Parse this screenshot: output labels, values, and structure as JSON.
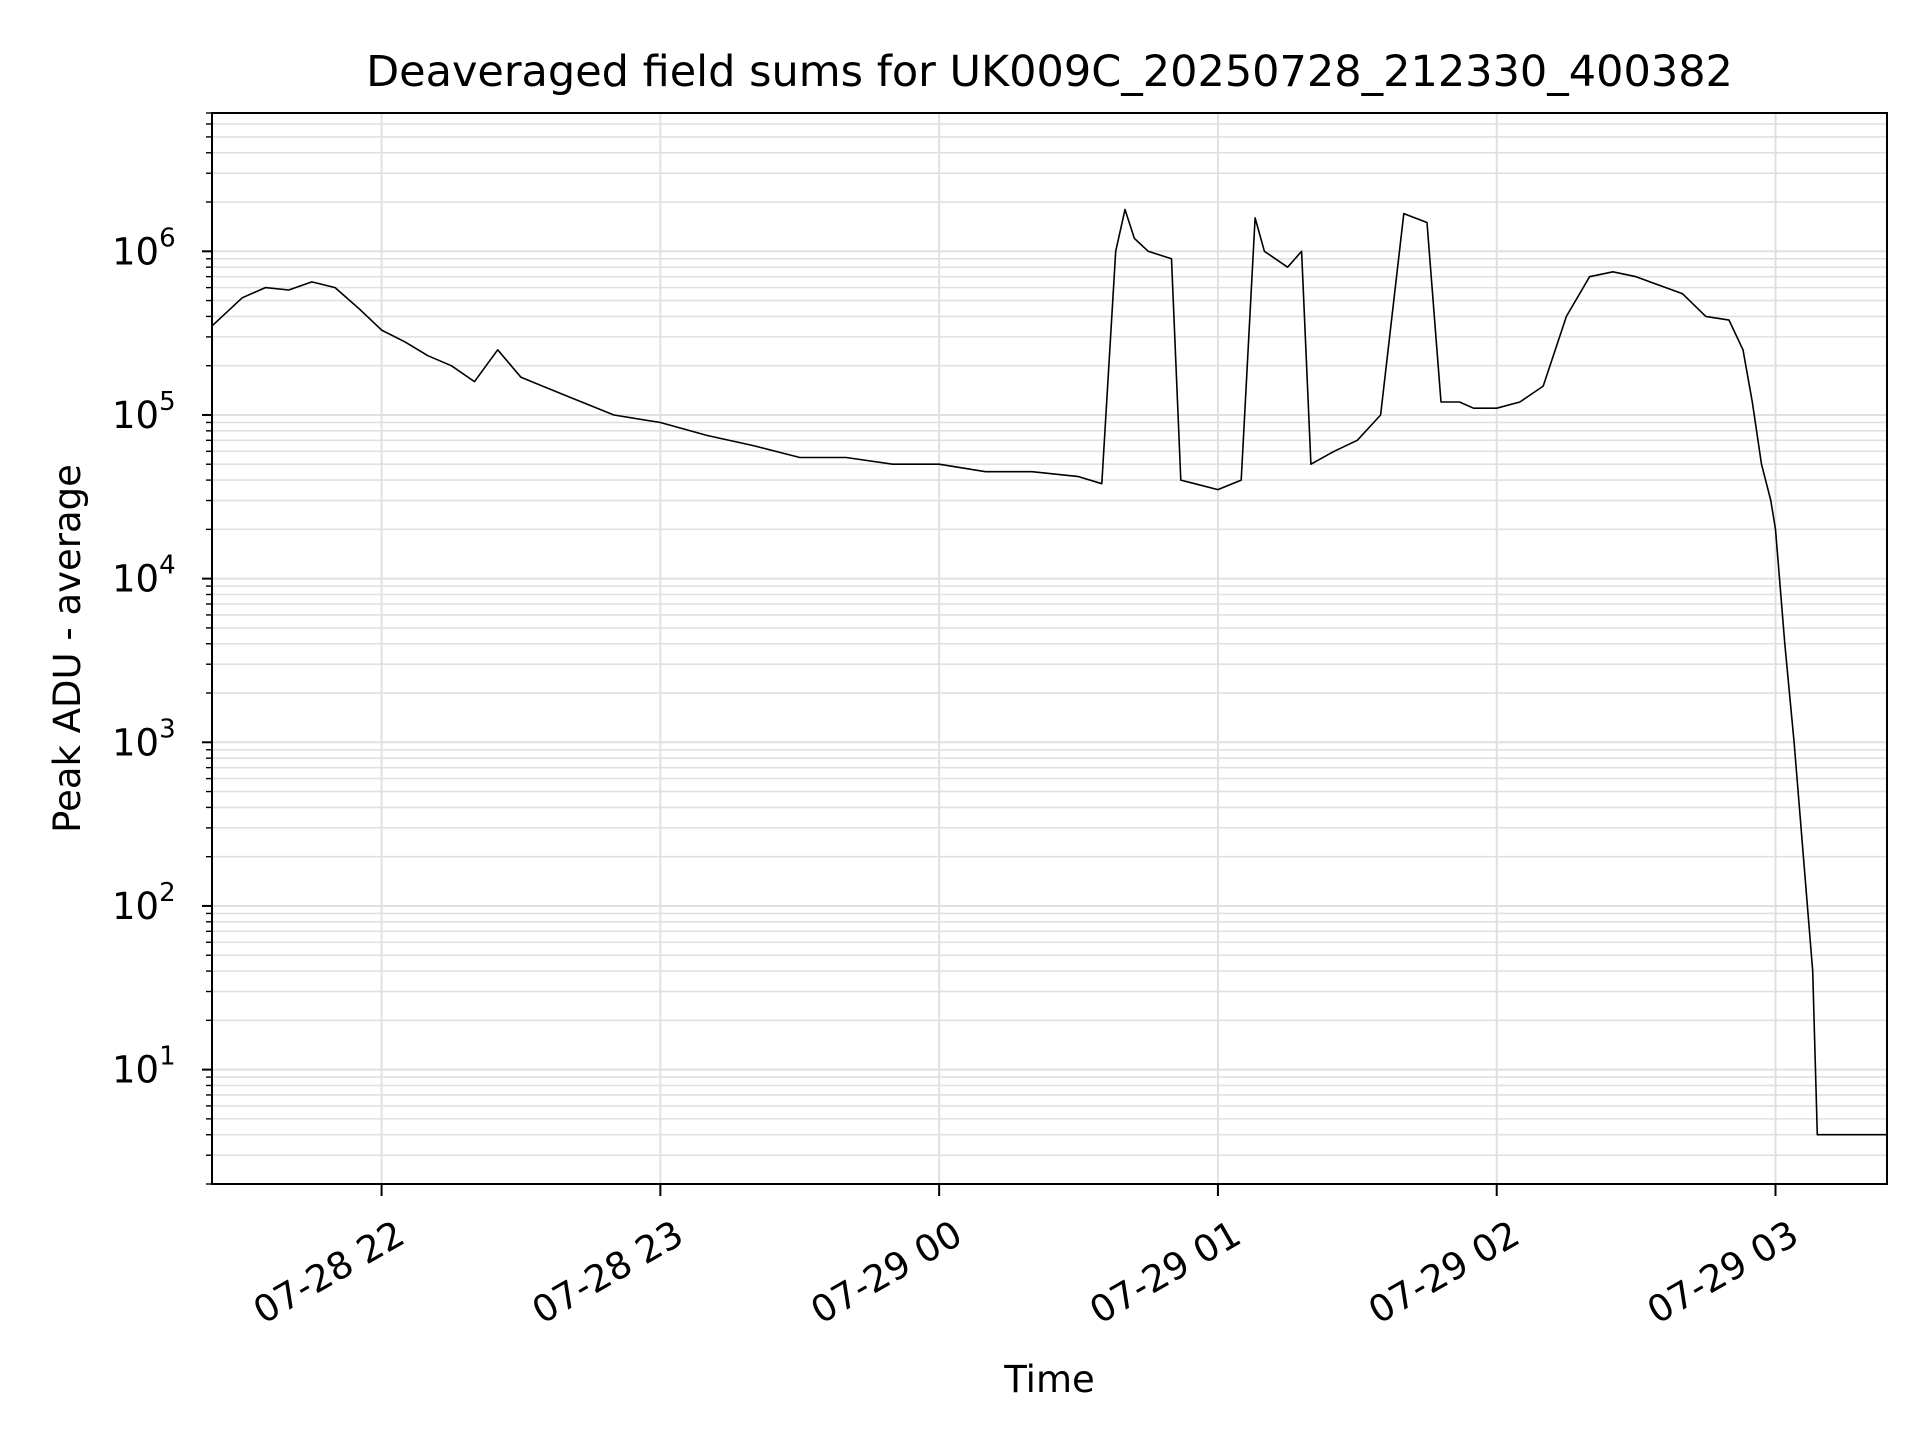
{
  "chart_data": {
    "type": "line",
    "title": "Deaveraged field sums for UK009C_20250728_212330_400382",
    "xlabel": "Time",
    "ylabel": "Peak ADU - average",
    "y_scale": "log",
    "xlim": [
      "2025-07-28 21:23:30",
      "2025-07-29 03:24:00"
    ],
    "ylim": [
      2,
      7000000
    ],
    "grid": "major and minor on y, major on x",
    "line_color": "#000000",
    "grid_color": "#e0e0e0",
    "x_ticks": [
      {
        "value": "2025-07-28 22:00",
        "label": "07-28 22"
      },
      {
        "value": "2025-07-28 23:00",
        "label": "07-28 23"
      },
      {
        "value": "2025-07-29 00:00",
        "label": "07-29 00"
      },
      {
        "value": "2025-07-29 01:00",
        "label": "07-29 01"
      },
      {
        "value": "2025-07-29 02:00",
        "label": "07-29 02"
      },
      {
        "value": "2025-07-29 03:00",
        "label": "07-29 03"
      }
    ],
    "y_ticks": [
      {
        "value": 10,
        "base": "10",
        "exp": "1"
      },
      {
        "value": 100,
        "base": "10",
        "exp": "2"
      },
      {
        "value": 1000,
        "base": "10",
        "exp": "3"
      },
      {
        "value": 10000,
        "base": "10",
        "exp": "4"
      },
      {
        "value": 100000,
        "base": "10",
        "exp": "5"
      },
      {
        "value": 1000000,
        "base": "10",
        "exp": "6"
      }
    ],
    "series": [
      {
        "x": [
          "2025-07-28 21:23:30",
          "2025-07-28 21:30",
          "2025-07-28 21:35",
          "2025-07-28 21:40",
          "2025-07-28 21:45",
          "2025-07-28 21:50",
          "2025-07-28 21:55",
          "2025-07-28 22:00",
          "2025-07-28 22:05",
          "2025-07-28 22:10",
          "2025-07-28 22:15",
          "2025-07-28 22:20",
          "2025-07-28 22:25",
          "2025-07-28 22:30",
          "2025-07-28 22:40",
          "2025-07-28 22:50",
          "2025-07-28 23:00",
          "2025-07-28 23:10",
          "2025-07-28 23:20",
          "2025-07-28 23:30",
          "2025-07-28 23:40",
          "2025-07-28 23:50",
          "2025-07-29 00:00",
          "2025-07-29 00:10",
          "2025-07-29 00:20",
          "2025-07-29 00:30",
          "2025-07-29 00:35",
          "2025-07-29 00:38",
          "2025-07-29 00:40",
          "2025-07-29 00:42",
          "2025-07-29 00:45",
          "2025-07-29 00:50",
          "2025-07-29 00:52",
          "2025-07-29 00:55",
          "2025-07-29 01:00",
          "2025-07-29 01:05",
          "2025-07-29 01:08",
          "2025-07-29 01:10",
          "2025-07-29 01:15",
          "2025-07-29 01:18",
          "2025-07-29 01:20",
          "2025-07-29 01:25",
          "2025-07-29 01:30",
          "2025-07-29 01:35",
          "2025-07-29 01:40",
          "2025-07-29 01:45",
          "2025-07-29 01:48",
          "2025-07-29 01:52",
          "2025-07-29 01:55",
          "2025-07-29 02:00",
          "2025-07-29 02:05",
          "2025-07-29 02:10",
          "2025-07-29 02:15",
          "2025-07-29 02:20",
          "2025-07-29 02:25",
          "2025-07-29 02:30",
          "2025-07-29 02:35",
          "2025-07-29 02:40",
          "2025-07-29 02:45",
          "2025-07-29 02:50",
          "2025-07-29 02:53",
          "2025-07-29 02:55",
          "2025-07-29 02:57",
          "2025-07-29 02:59",
          "2025-07-29 03:00",
          "2025-07-29 03:02",
          "2025-07-29 03:04",
          "2025-07-29 03:06",
          "2025-07-29 03:08",
          "2025-07-29 03:09",
          "2025-07-29 03:10",
          "2025-07-29 03:24"
        ],
        "y": [
          350000,
          520000,
          600000,
          580000,
          650000,
          600000,
          450000,
          330000,
          280000,
          230000,
          200000,
          160000,
          250000,
          170000,
          130000,
          100000,
          90000,
          75000,
          65000,
          55000,
          55000,
          50000,
          50000,
          45000,
          45000,
          42000,
          38000,
          1000000,
          1800000,
          1200000,
          1000000,
          900000,
          40000,
          38000,
          35000,
          40000,
          1600000,
          1000000,
          800000,
          1000000,
          50000,
          60000,
          70000,
          100000,
          1700000,
          1500000,
          120000,
          120000,
          110000,
          110000,
          120000,
          150000,
          400000,
          700000,
          750000,
          700000,
          620000,
          550000,
          400000,
          380000,
          250000,
          120000,
          50000,
          30000,
          20000,
          4000,
          1000,
          200,
          40,
          4,
          4,
          4
        ]
      }
    ]
  }
}
